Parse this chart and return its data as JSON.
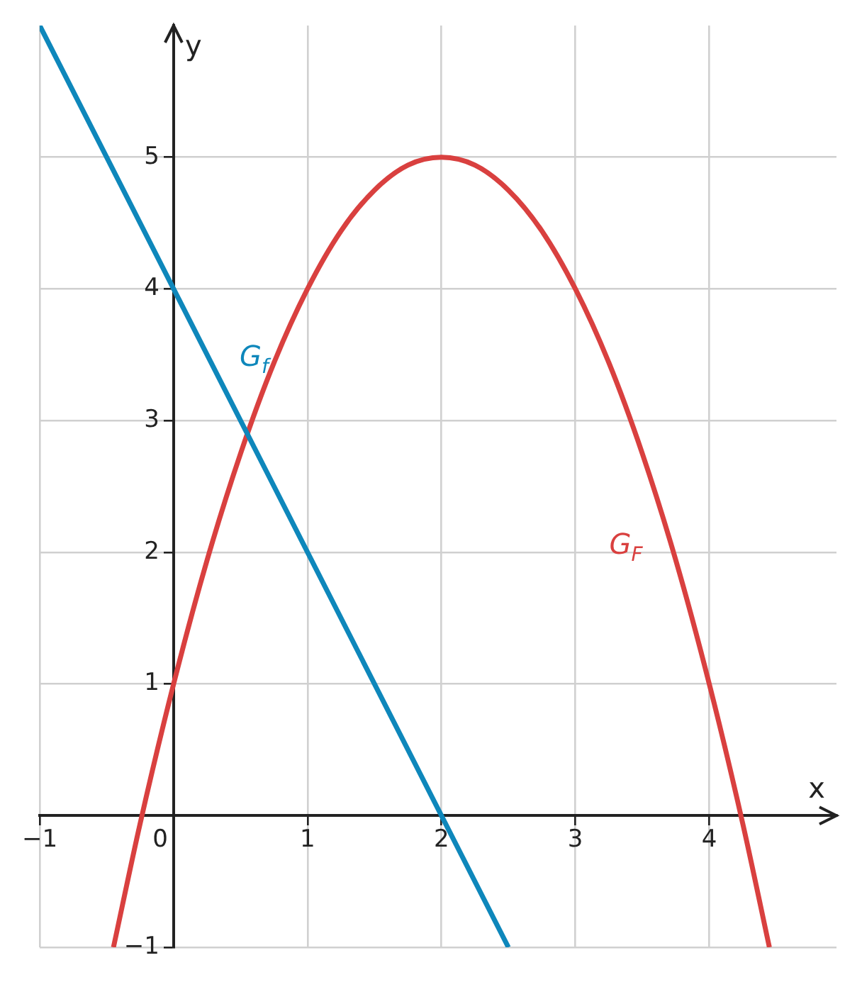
{
  "chart_data": {
    "type": "line",
    "xlabel": "x",
    "ylabel": "y",
    "xlim": [
      -1,
      4.95
    ],
    "ylim": [
      -1,
      6
    ],
    "xticks": [
      -1,
      0,
      1,
      2,
      3,
      4
    ],
    "yticks": [
      -1,
      1,
      2,
      3,
      4,
      5
    ],
    "grid": true,
    "legend": false,
    "series": [
      {
        "name": "G$_{f}$",
        "color": "#0e87bb",
        "x": [
          -1,
          2.5
        ],
        "values": [
          6,
          -1
        ]
      },
      {
        "name": "G$_{F}$",
        "color": "#d9403f",
        "x": [
          -0.449,
          -0.25,
          0,
          0.25,
          0.5,
          0.75,
          1,
          1.25,
          1.5,
          1.75,
          2,
          2.25,
          2.5,
          2.75,
          3,
          3.25,
          3.5,
          3.75,
          4,
          4.25,
          4.449
        ],
        "values": [
          -1,
          -0.06,
          1,
          1.94,
          2.75,
          3.44,
          4,
          4.44,
          4.75,
          4.94,
          5,
          4.94,
          4.75,
          4.44,
          4,
          3.44,
          2.75,
          1.94,
          1,
          -0.06,
          -1
        ]
      }
    ]
  }
}
